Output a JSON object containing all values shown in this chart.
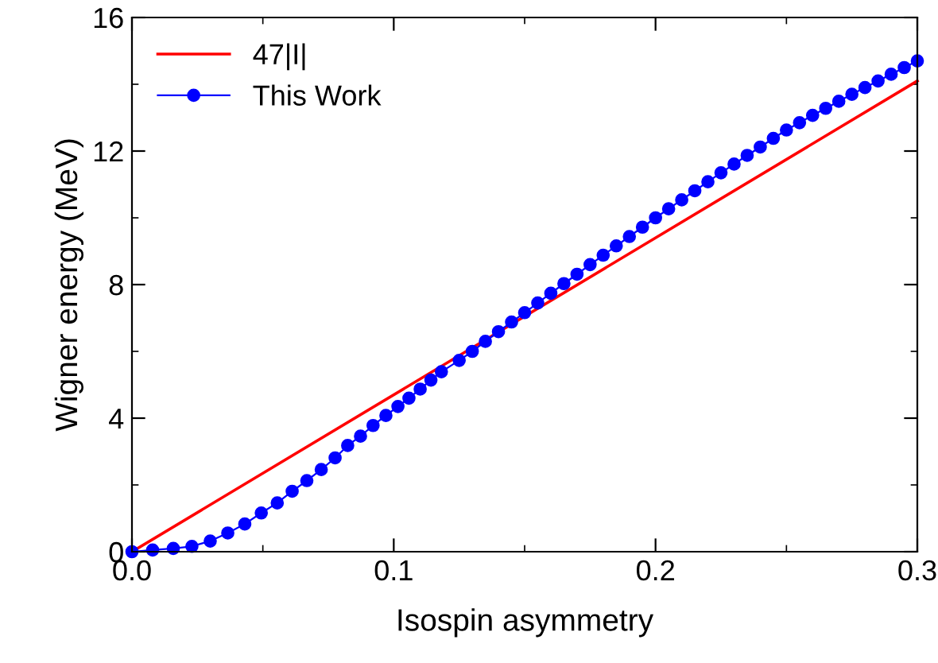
{
  "chart_data": {
    "type": "line",
    "xlabel": "Isospin asymmetry",
    "ylabel": "Wigner energy (MeV)",
    "xlim": [
      0.0,
      0.3
    ],
    "ylim": [
      0,
      16
    ],
    "xticks": [
      {
        "value": 0.0,
        "label": "0.0"
      },
      {
        "value": 0.05,
        "label": null
      },
      {
        "value": 0.1,
        "label": "0.1"
      },
      {
        "value": 0.15,
        "label": null
      },
      {
        "value": 0.2,
        "label": "0.2"
      },
      {
        "value": 0.25,
        "label": null
      },
      {
        "value": 0.3,
        "label": "0.3"
      }
    ],
    "yticks": [
      0,
      {
        "value": 2,
        "label": null
      },
      4,
      {
        "value": 6,
        "label": null
      },
      8,
      {
        "value": 10,
        "label": null
      },
      12,
      {
        "value": 14,
        "label": null
      },
      16
    ],
    "legend": "top left",
    "grid": false,
    "series": [
      {
        "name": "47|I|",
        "color": "#ff0000",
        "marker": "none",
        "x": [
          0.0,
          0.3
        ],
        "values": [
          0,
          14.1
        ]
      },
      {
        "name": "This Work",
        "color": "#0000ff",
        "marker": "circle",
        "x": [
          0.0,
          0.0079,
          0.0158,
          0.0229,
          0.0299,
          0.0366,
          0.0431,
          0.0494,
          0.0555,
          0.0612,
          0.0668,
          0.0723,
          0.0776,
          0.0824,
          0.0873,
          0.0921,
          0.097,
          0.1016,
          0.1058,
          0.1101,
          0.1142,
          0.1182,
          0.125,
          0.13,
          0.135,
          0.14,
          0.145,
          0.15,
          0.155,
          0.16,
          0.165,
          0.17,
          0.175,
          0.18,
          0.185,
          0.19,
          0.195,
          0.2,
          0.205,
          0.21,
          0.215,
          0.22,
          0.225,
          0.23,
          0.235,
          0.24,
          0.245,
          0.25,
          0.255,
          0.26,
          0.265,
          0.27,
          0.275,
          0.28,
          0.285,
          0.29,
          0.295,
          0.3
        ],
        "values": [
          0.0,
          0.05,
          0.1,
          0.16,
          0.32,
          0.56,
          0.83,
          1.16,
          1.46,
          1.81,
          2.13,
          2.46,
          2.81,
          3.18,
          3.46,
          3.78,
          4.08,
          4.35,
          4.6,
          4.87,
          5.14,
          5.39,
          5.73,
          6.0,
          6.3,
          6.59,
          6.88,
          7.16,
          7.45,
          7.74,
          8.03,
          8.31,
          8.6,
          8.88,
          9.16,
          9.44,
          9.72,
          10.0,
          10.27,
          10.54,
          10.81,
          11.08,
          11.35,
          11.61,
          11.87,
          12.12,
          12.38,
          12.63,
          12.85,
          13.07,
          13.28,
          13.49,
          13.7,
          13.9,
          14.1,
          14.3,
          14.5,
          14.7
        ]
      }
    ]
  }
}
